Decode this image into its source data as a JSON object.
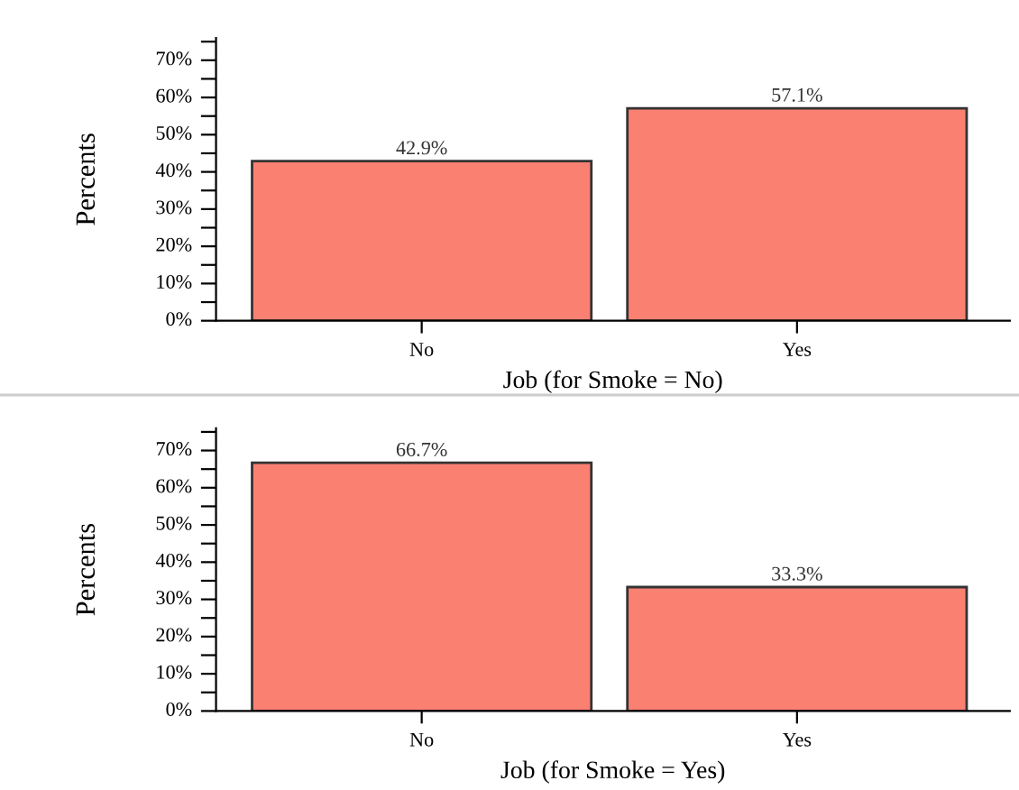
{
  "chart_data": [
    {
      "type": "bar",
      "categories": [
        "No",
        "Yes"
      ],
      "xlabel": "Job (for Smoke = No)",
      "ylabel": "Percents",
      "series": [
        {
          "color": "#fa8072",
          "values": [
            42.9,
            57.1
          ],
          "value_labels": [
            "42.9%",
            "57.1%"
          ]
        }
      ],
      "ylim": [
        0,
        76
      ],
      "yticks": [
        {
          "value": 0,
          "label": "0%"
        },
        {
          "value": 5,
          "label": null
        },
        {
          "value": 10,
          "label": "10%"
        },
        {
          "value": 15,
          "label": null
        },
        {
          "value": 20,
          "label": "20%"
        },
        {
          "value": 25,
          "label": null
        },
        {
          "value": 30,
          "label": "30%"
        },
        {
          "value": 35,
          "label": null
        },
        {
          "value": 40,
          "label": "40%"
        },
        {
          "value": 45,
          "label": null
        },
        {
          "value": 50,
          "label": "50%"
        },
        {
          "value": 55,
          "label": null
        },
        {
          "value": 60,
          "label": "60%"
        },
        {
          "value": 65,
          "label": null
        },
        {
          "value": 70,
          "label": "70%"
        },
        {
          "value": 75,
          "label": null
        }
      ],
      "grid": false,
      "legend": false
    },
    {
      "type": "bar",
      "categories": [
        "No",
        "Yes"
      ],
      "xlabel": "Job (for Smoke = Yes)",
      "ylabel": "Percents",
      "series": [
        {
          "color": "#fa8072",
          "values": [
            66.7,
            33.3
          ],
          "value_labels": [
            "66.7%",
            "33.3%"
          ]
        }
      ],
      "ylim": [
        0,
        76
      ],
      "yticks": [
        {
          "value": 0,
          "label": "0%"
        },
        {
          "value": 5,
          "label": null
        },
        {
          "value": 10,
          "label": "10%"
        },
        {
          "value": 15,
          "label": null
        },
        {
          "value": 20,
          "label": "20%"
        },
        {
          "value": 25,
          "label": null
        },
        {
          "value": 30,
          "label": "30%"
        },
        {
          "value": 35,
          "label": null
        },
        {
          "value": 40,
          "label": "40%"
        },
        {
          "value": 45,
          "label": null
        },
        {
          "value": 50,
          "label": "50%"
        },
        {
          "value": 55,
          "label": null
        },
        {
          "value": 60,
          "label": "60%"
        },
        {
          "value": 65,
          "label": null
        },
        {
          "value": 70,
          "label": "70%"
        },
        {
          "value": 75,
          "label": null
        }
      ],
      "grid": false,
      "legend": false
    }
  ]
}
